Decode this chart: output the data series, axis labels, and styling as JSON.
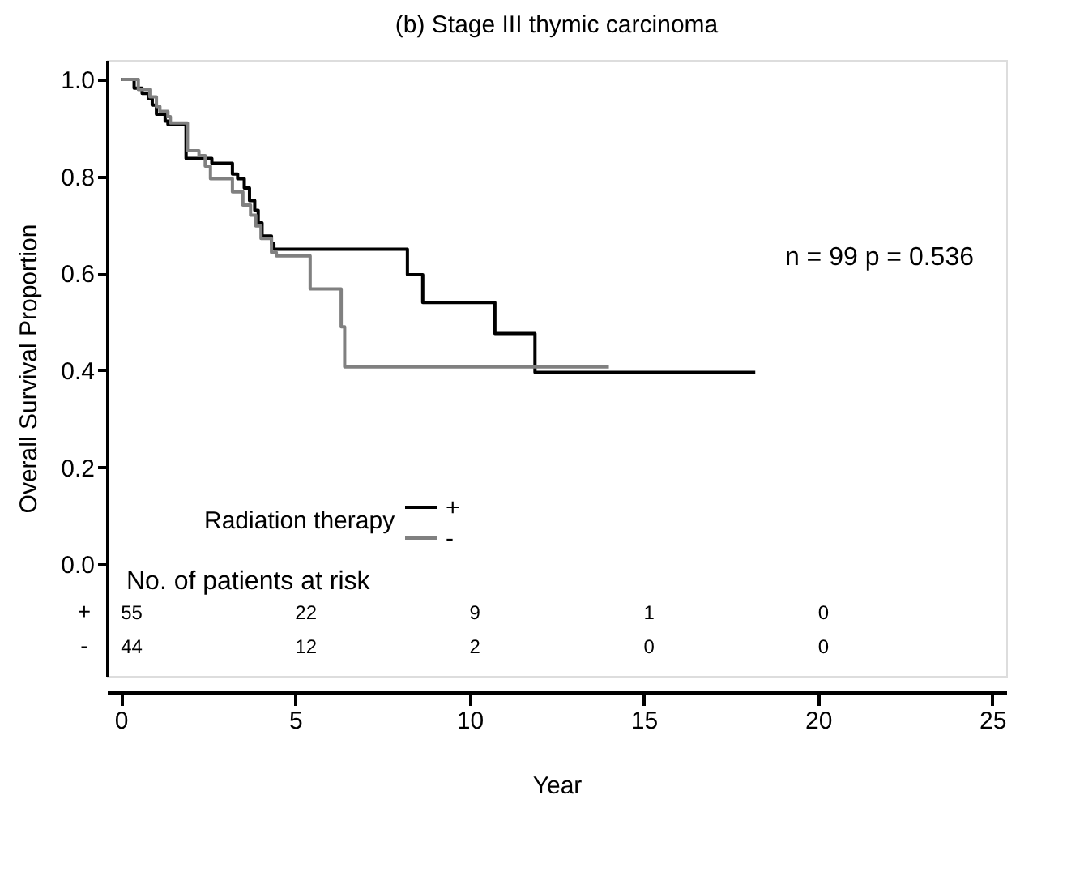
{
  "chart_data": {
    "type": "step",
    "title": "(b) Stage III thymic carcinoma",
    "xlabel": "Year",
    "ylabel": "Overall Survival Proportion",
    "legend_title": "Radiation therapy",
    "legend": "bottom left",
    "xlim": [
      -0.4,
      25.4
    ],
    "ylim": [
      -0.23,
      1.04
    ],
    "xticks": [
      0,
      5,
      10,
      15,
      20,
      25
    ],
    "yticks": [
      {
        "value": 0,
        "label": "0.0"
      },
      0.2,
      0.4,
      0.6,
      0.8,
      {
        "value": 1,
        "label": "1.0"
      }
    ],
    "grid": false,
    "marker": "none",
    "line_style": "solid",
    "series": [
      {
        "name": "+",
        "color": "#000000",
        "x": [
          0,
          0.38,
          0.61,
          0.8,
          0.9,
          1.02,
          1.27,
          1.35,
          1.87,
          2.61,
          3.2,
          3.35,
          3.54,
          3.69,
          3.84,
          3.94,
          4.05,
          4.32,
          4.39,
          8.22,
          8.66,
          10.73,
          11.88,
          18.2
        ],
        "values": [
          1.0,
          0.982,
          0.971,
          0.96,
          0.947,
          0.928,
          0.914,
          0.907,
          0.837,
          0.827,
          0.805,
          0.795,
          0.776,
          0.75,
          0.73,
          0.704,
          0.677,
          0.661,
          0.65,
          0.597,
          0.54,
          0.476,
          0.396,
          0.396
        ]
      },
      {
        "name": "-",
        "color": "#808080",
        "x": [
          0,
          0.5,
          0.83,
          1.02,
          1.12,
          1.35,
          1.42,
          1.91,
          2.24,
          2.42,
          2.57,
          3.2,
          3.5,
          3.72,
          3.87,
          4.02,
          4.32,
          4.46,
          5.43,
          6.32,
          6.42,
          14.0
        ],
        "values": [
          1.0,
          0.979,
          0.964,
          0.944,
          0.934,
          0.923,
          0.91,
          0.853,
          0.843,
          0.821,
          0.795,
          0.768,
          0.741,
          0.72,
          0.698,
          0.672,
          0.643,
          0.636,
          0.568,
          0.49,
          0.407,
          0.407
        ]
      }
    ],
    "annotations": [
      "n = 99  p = 0.536",
      "No. of patients at risk",
      "+",
      "55",
      "22",
      "9",
      "1",
      "0",
      "-",
      "44",
      "12",
      "2",
      "0",
      "0"
    ]
  }
}
